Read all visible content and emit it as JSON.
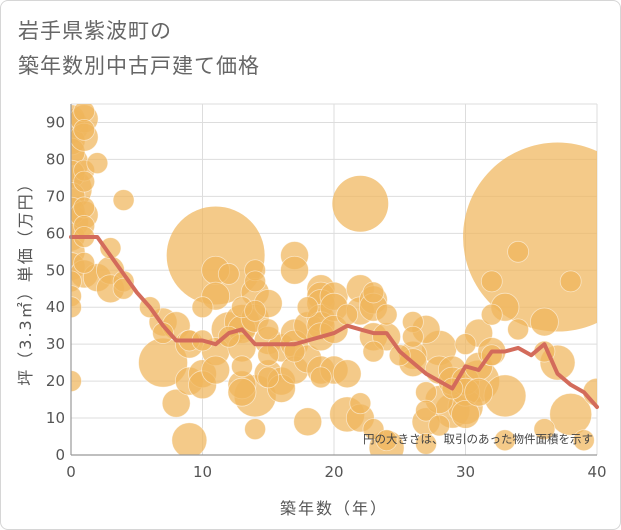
{
  "chart_data": {
    "type": "scatter",
    "title_lines": [
      "岩手県紫波町の",
      "築年数別中古戸建て価格"
    ],
    "xlabel": "築年数（年）",
    "ylabel": "坪（3.3㎡）単価（万円）",
    "note": "円の大きさは、取引のあった物件面積を示す",
    "xlim": [
      0,
      40
    ],
    "ylim": [
      0,
      95
    ],
    "x_ticks": [
      0,
      10,
      20,
      30,
      40
    ],
    "y_ticks": [
      0,
      10,
      20,
      30,
      40,
      50,
      60,
      70,
      80,
      90
    ],
    "grid": true,
    "colors": {
      "bubble": "#f0b55c",
      "trend": "#d36b5b",
      "grid": "#dddddd",
      "axis": "#999999"
    },
    "bubbles": [
      {
        "x": 0,
        "y": 91,
        "s": 4
      },
      {
        "x": 0,
        "y": 89,
        "s": 5
      },
      {
        "x": 0,
        "y": 85,
        "s": 4
      },
      {
        "x": 0,
        "y": 82,
        "s": 4
      },
      {
        "x": 0,
        "y": 79,
        "s": 5
      },
      {
        "x": 0,
        "y": 76,
        "s": 4
      },
      {
        "x": 0,
        "y": 72,
        "s": 6
      },
      {
        "x": 0,
        "y": 70,
        "s": 4
      },
      {
        "x": 0,
        "y": 66,
        "s": 4
      },
      {
        "x": 0,
        "y": 63,
        "s": 5
      },
      {
        "x": 0,
        "y": 59,
        "s": 4
      },
      {
        "x": 0,
        "y": 55,
        "s": 4
      },
      {
        "x": 0,
        "y": 51,
        "s": 4
      },
      {
        "x": 0,
        "y": 47,
        "s": 3
      },
      {
        "x": 0,
        "y": 43,
        "s": 3
      },
      {
        "x": 0,
        "y": 40,
        "s": 3
      },
      {
        "x": 0,
        "y": 20,
        "s": 3
      },
      {
        "x": 1,
        "y": 93,
        "s": 3
      },
      {
        "x": 1,
        "y": 91,
        "s": 4
      },
      {
        "x": 1,
        "y": 88,
        "s": 3
      },
      {
        "x": 1,
        "y": 86,
        "s": 4
      },
      {
        "x": 1,
        "y": 77,
        "s": 3
      },
      {
        "x": 1,
        "y": 74,
        "s": 3
      },
      {
        "x": 1,
        "y": 67,
        "s": 3
      },
      {
        "x": 1,
        "y": 65,
        "s": 4
      },
      {
        "x": 1,
        "y": 62,
        "s": 3
      },
      {
        "x": 1,
        "y": 59,
        "s": 3
      },
      {
        "x": 1,
        "y": 52,
        "s": 3
      },
      {
        "x": 1,
        "y": 49,
        "s": 4
      },
      {
        "x": 2,
        "y": 79,
        "s": 3
      },
      {
        "x": 2,
        "y": 48,
        "s": 4
      },
      {
        "x": 3,
        "y": 56,
        "s": 3
      },
      {
        "x": 3,
        "y": 50,
        "s": 4
      },
      {
        "x": 3,
        "y": 45,
        "s": 4
      },
      {
        "x": 4,
        "y": 69,
        "s": 3
      },
      {
        "x": 4,
        "y": 47,
        "s": 3
      },
      {
        "x": 4,
        "y": 45,
        "s": 3
      },
      {
        "x": 6,
        "y": 40,
        "s": 3
      },
      {
        "x": 7,
        "y": 36,
        "s": 4
      },
      {
        "x": 7,
        "y": 33,
        "s": 3
      },
      {
        "x": 7,
        "y": 25,
        "s": 7
      },
      {
        "x": 8,
        "y": 35,
        "s": 4
      },
      {
        "x": 8,
        "y": 14,
        "s": 4
      },
      {
        "x": 9,
        "y": 31,
        "s": 3
      },
      {
        "x": 9,
        "y": 30,
        "s": 4
      },
      {
        "x": 9,
        "y": 20,
        "s": 4
      },
      {
        "x": 9,
        "y": 4,
        "s": 5
      },
      {
        "x": 10,
        "y": 40,
        "s": 3
      },
      {
        "x": 10,
        "y": 31,
        "s": 3
      },
      {
        "x": 10,
        "y": 22,
        "s": 4
      },
      {
        "x": 10,
        "y": 19,
        "s": 4
      },
      {
        "x": 11,
        "y": 54,
        "s": 14
      },
      {
        "x": 11,
        "y": 50,
        "s": 4
      },
      {
        "x": 11,
        "y": 43,
        "s": 4
      },
      {
        "x": 11,
        "y": 28,
        "s": 4
      },
      {
        "x": 11,
        "y": 23,
        "s": 4
      },
      {
        "x": 12,
        "y": 49,
        "s": 3
      },
      {
        "x": 12,
        "y": 34,
        "s": 5
      },
      {
        "x": 12,
        "y": 32,
        "s": 3
      },
      {
        "x": 13,
        "y": 40,
        "s": 3
      },
      {
        "x": 13,
        "y": 36,
        "s": 5
      },
      {
        "x": 13,
        "y": 34,
        "s": 4
      },
      {
        "x": 13,
        "y": 29,
        "s": 4
      },
      {
        "x": 13,
        "y": 19,
        "s": 4
      },
      {
        "x": 13,
        "y": 17,
        "s": 4
      },
      {
        "x": 13,
        "y": 24,
        "s": 3
      },
      {
        "x": 14,
        "y": 50,
        "s": 3
      },
      {
        "x": 14,
        "y": 47,
        "s": 3
      },
      {
        "x": 14,
        "y": 44,
        "s": 4
      },
      {
        "x": 14,
        "y": 39,
        "s": 3
      },
      {
        "x": 14,
        "y": 37,
        "s": 4
      },
      {
        "x": 14,
        "y": 16,
        "s": 6
      },
      {
        "x": 14,
        "y": 7,
        "s": 3
      },
      {
        "x": 15,
        "y": 41,
        "s": 4
      },
      {
        "x": 15,
        "y": 34,
        "s": 3
      },
      {
        "x": 15,
        "y": 31,
        "s": 4
      },
      {
        "x": 15,
        "y": 27,
        "s": 3
      },
      {
        "x": 15,
        "y": 22,
        "s": 4
      },
      {
        "x": 15,
        "y": 21,
        "s": 3
      },
      {
        "x": 16,
        "y": 29,
        "s": 4
      },
      {
        "x": 16,
        "y": 20,
        "s": 4
      },
      {
        "x": 16,
        "y": 18,
        "s": 4
      },
      {
        "x": 17,
        "y": 54,
        "s": 4
      },
      {
        "x": 17,
        "y": 50,
        "s": 4
      },
      {
        "x": 17,
        "y": 33,
        "s": 4
      },
      {
        "x": 17,
        "y": 30,
        "s": 4
      },
      {
        "x": 17,
        "y": 28,
        "s": 3
      },
      {
        "x": 17,
        "y": 23,
        "s": 4
      },
      {
        "x": 18,
        "y": 40,
        "s": 3
      },
      {
        "x": 18,
        "y": 35,
        "s": 4
      },
      {
        "x": 18,
        "y": 26,
        "s": 4
      },
      {
        "x": 18,
        "y": 9,
        "s": 4
      },
      {
        "x": 19,
        "y": 45,
        "s": 4
      },
      {
        "x": 19,
        "y": 43,
        "s": 4
      },
      {
        "x": 19,
        "y": 41,
        "s": 4
      },
      {
        "x": 19,
        "y": 37,
        "s": 4
      },
      {
        "x": 19,
        "y": 35,
        "s": 4
      },
      {
        "x": 19,
        "y": 32,
        "s": 4
      },
      {
        "x": 19,
        "y": 23,
        "s": 4
      },
      {
        "x": 19,
        "y": 21,
        "s": 3
      },
      {
        "x": 20,
        "y": 43,
        "s": 4
      },
      {
        "x": 20,
        "y": 40,
        "s": 4
      },
      {
        "x": 20,
        "y": 34,
        "s": 4
      },
      {
        "x": 20,
        "y": 23,
        "s": 4
      },
      {
        "x": 21,
        "y": 38,
        "s": 3
      },
      {
        "x": 21,
        "y": 22,
        "s": 4
      },
      {
        "x": 21,
        "y": 11,
        "s": 5
      },
      {
        "x": 22,
        "y": 68,
        "s": 8
      },
      {
        "x": 22,
        "y": 45,
        "s": 4
      },
      {
        "x": 22,
        "y": 39,
        "s": 4
      },
      {
        "x": 22,
        "y": 14,
        "s": 3
      },
      {
        "x": 22,
        "y": 10,
        "s": 4
      },
      {
        "x": 23,
        "y": 44,
        "s": 3
      },
      {
        "x": 23,
        "y": 42,
        "s": 4
      },
      {
        "x": 23,
        "y": 40,
        "s": 4
      },
      {
        "x": 23,
        "y": 32,
        "s": 4
      },
      {
        "x": 23,
        "y": 28,
        "s": 3
      },
      {
        "x": 23,
        "y": 7,
        "s": 3
      },
      {
        "x": 24,
        "y": 38,
        "s": 3
      },
      {
        "x": 24,
        "y": 32,
        "s": 4
      },
      {
        "x": 24,
        "y": 4,
        "s": 3
      },
      {
        "x": 24,
        "y": 2,
        "s": 5
      },
      {
        "x": 25,
        "y": 27,
        "s": 3
      },
      {
        "x": 26,
        "y": 36,
        "s": 3
      },
      {
        "x": 26,
        "y": 32,
        "s": 3
      },
      {
        "x": 26,
        "y": 27,
        "s": 4
      },
      {
        "x": 26,
        "y": 25,
        "s": 4
      },
      {
        "x": 27,
        "y": 34,
        "s": 4
      },
      {
        "x": 27,
        "y": 17,
        "s": 3
      },
      {
        "x": 27,
        "y": 12,
        "s": 3
      },
      {
        "x": 27,
        "y": 9,
        "s": 4
      },
      {
        "x": 27,
        "y": 3,
        "s": 3
      },
      {
        "x": 28,
        "y": 29,
        "s": 5
      },
      {
        "x": 28,
        "y": 23,
        "s": 4
      },
      {
        "x": 28,
        "y": 15,
        "s": 4
      },
      {
        "x": 28,
        "y": 8,
        "s": 3
      },
      {
        "x": 29,
        "y": 23,
        "s": 4
      },
      {
        "x": 29,
        "y": 20,
        "s": 4
      },
      {
        "x": 29,
        "y": 18,
        "s": 3
      },
      {
        "x": 29,
        "y": 12,
        "s": 5
      },
      {
        "x": 30,
        "y": 30,
        "s": 3
      },
      {
        "x": 30,
        "y": 20,
        "s": 4
      },
      {
        "x": 30,
        "y": 17,
        "s": 4
      },
      {
        "x": 30,
        "y": 13,
        "s": 5
      },
      {
        "x": 30,
        "y": 11,
        "s": 4
      },
      {
        "x": 31,
        "y": 33,
        "s": 4
      },
      {
        "x": 31,
        "y": 24,
        "s": 4
      },
      {
        "x": 31,
        "y": 20,
        "s": 6
      },
      {
        "x": 31,
        "y": 17,
        "s": 4
      },
      {
        "x": 32,
        "y": 47,
        "s": 3
      },
      {
        "x": 32,
        "y": 38,
        "s": 3
      },
      {
        "x": 32,
        "y": 28,
        "s": 4
      },
      {
        "x": 32,
        "y": 27,
        "s": 3
      },
      {
        "x": 33,
        "y": 40,
        "s": 4
      },
      {
        "x": 33,
        "y": 16,
        "s": 6
      },
      {
        "x": 33,
        "y": 4,
        "s": 3
      },
      {
        "x": 34,
        "y": 55,
        "s": 3
      },
      {
        "x": 34,
        "y": 34,
        "s": 3
      },
      {
        "x": 36,
        "y": 36,
        "s": 4
      },
      {
        "x": 36,
        "y": 28,
        "s": 3
      },
      {
        "x": 36,
        "y": 7,
        "s": 3
      },
      {
        "x": 37,
        "y": 59,
        "s": 27
      },
      {
        "x": 37,
        "y": 25,
        "s": 5
      },
      {
        "x": 38,
        "y": 47,
        "s": 3
      },
      {
        "x": 38,
        "y": 11,
        "s": 6
      },
      {
        "x": 39,
        "y": 4,
        "s": 3
      },
      {
        "x": 40,
        "y": 17,
        "s": 4
      }
    ],
    "trend": {
      "x": [
        0,
        1,
        2,
        3,
        4,
        5,
        6,
        7,
        8,
        9,
        10,
        11,
        12,
        13,
        14,
        15,
        16,
        17,
        18,
        19,
        20,
        21,
        22,
        23,
        24,
        25,
        26,
        27,
        28,
        29,
        30,
        31,
        32,
        33,
        34,
        35,
        36,
        37,
        38,
        39,
        40
      ],
      "y": [
        59,
        59,
        59,
        54,
        49,
        44,
        40,
        35,
        31,
        31,
        31,
        30,
        33,
        34,
        30,
        30,
        30,
        30,
        31,
        32,
        33,
        35,
        34,
        33,
        33,
        28,
        25,
        22,
        20,
        18,
        24,
        23,
        28,
        28,
        29,
        27,
        30,
        22,
        19,
        17,
        13
      ]
    }
  }
}
